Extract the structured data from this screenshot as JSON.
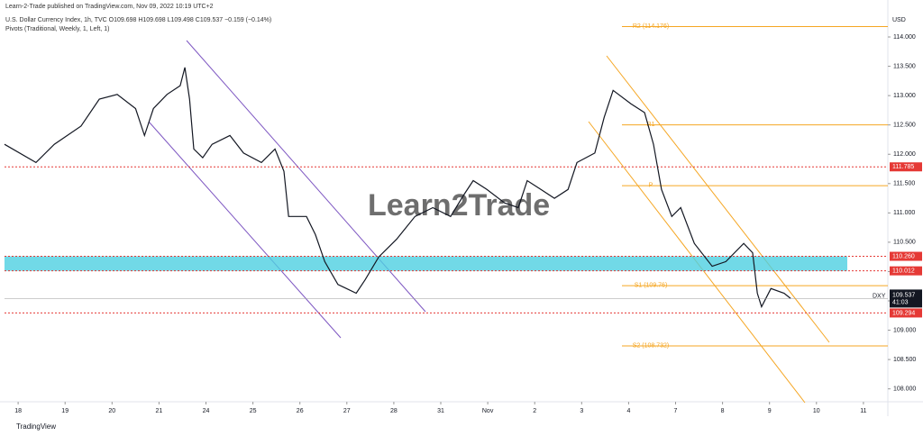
{
  "chart_data": {
    "type": "line",
    "header": "Learn-2-Trade published on TradingView.com, Nov 09, 2022 10:19 UTC+2",
    "title": "U.S. Dollar Currency Index, 1h, TVC  O109.698  H109.698  L109.498  C109.537  −0.159 (−0.14%)",
    "subtitle": "Pivots (Traditional, Weekly, 1, Left, 1)",
    "watermark": "Learn2Trade",
    "footer": "TradingView",
    "currency": "USD",
    "countdown": "41:03",
    "x": [
      -0.29,
      0.38,
      0.77,
      1.34,
      1.73,
      2.11,
      2.5,
      2.69,
      2.88,
      3.17,
      3.45,
      3.55,
      3.65,
      3.74,
      3.93,
      4.13,
      4.51,
      4.8,
      5.18,
      5.47,
      5.66,
      5.76,
      6.14,
      6.33,
      6.53,
      6.81,
      7.2,
      7.39,
      7.68,
      8.06,
      8.45,
      8.83,
      9.21,
      9.5,
      9.69,
      9.98,
      10.36,
      10.65,
      10.84,
      11.13,
      11.42,
      11.71,
      11.9,
      12.09,
      12.28,
      12.48,
      12.67,
      13.05,
      13.34,
      13.53,
      13.7,
      13.92,
      14.11,
      14.4,
      14.78,
      15.07,
      15.45,
      15.64,
      15.74,
      15.83,
      16.03,
      16.31,
      16.45
    ],
    "series": [
      {
        "name": "DXY",
        "color": "#131722",
        "values": [
          112.17,
          111.86,
          112.17,
          112.48,
          112.94,
          113.02,
          112.78,
          112.32,
          112.78,
          113.02,
          113.17,
          113.48,
          112.94,
          112.09,
          111.94,
          112.17,
          112.32,
          112.02,
          111.86,
          112.09,
          111.71,
          110.94,
          110.94,
          110.63,
          110.17,
          109.78,
          109.63,
          109.86,
          110.25,
          110.55,
          110.94,
          111.09,
          110.94,
          111.32,
          111.55,
          111.4,
          111.17,
          111.09,
          111.55,
          111.4,
          111.25,
          111.4,
          111.86,
          111.94,
          112.02,
          112.63,
          113.09,
          112.86,
          112.71,
          112.17,
          111.4,
          110.94,
          111.09,
          110.48,
          110.09,
          110.17,
          110.48,
          110.32,
          109.63,
          109.4,
          109.71,
          109.63,
          109.54
        ],
        "value_labels": [
          null,
          null,
          null,
          null,
          null,
          null,
          null,
          null,
          null,
          null,
          null,
          null,
          null,
          null,
          null,
          null,
          null,
          null,
          null,
          null,
          null,
          null,
          null,
          null,
          null,
          null,
          null,
          null,
          null,
          null,
          null,
          null,
          null,
          null,
          null,
          null,
          null,
          null,
          null,
          null,
          null,
          null,
          null,
          null,
          null,
          null,
          null,
          null,
          null,
          null,
          null,
          null,
          null,
          null,
          null,
          null,
          null,
          null,
          null,
          null,
          null,
          null,
          "109.537"
        ]
      }
    ],
    "xlim": [
      -0.29,
      18.52
    ],
    "ylim": [
      107.78,
      114.63
    ],
    "xticks": [
      {
        "value": 0,
        "label": "18"
      },
      {
        "value": 1,
        "label": "19"
      },
      {
        "value": 2,
        "label": "20"
      },
      {
        "value": 3,
        "label": "21"
      },
      {
        "value": 4,
        "label": "24"
      },
      {
        "value": 5,
        "label": "25"
      },
      {
        "value": 6,
        "label": "26"
      },
      {
        "value": 7,
        "label": "27"
      },
      {
        "value": 8,
        "label": "28"
      },
      {
        "value": 9,
        "label": "31"
      },
      {
        "value": 10,
        "label": "Nov"
      },
      {
        "value": 11,
        "label": "2"
      },
      {
        "value": 12,
        "label": "3"
      },
      {
        "value": 13,
        "label": "4"
      },
      {
        "value": 14,
        "label": "7"
      },
      {
        "value": 15,
        "label": "8"
      },
      {
        "value": 16,
        "label": "9"
      },
      {
        "value": 17,
        "label": "10"
      },
      {
        "value": 18,
        "label": "11"
      }
    ],
    "yticks": [
      {
        "value": 108,
        "label": "108.000"
      },
      {
        "value": 108.5,
        "label": "108.500"
      },
      {
        "value": 109,
        "label": "109.000"
      },
      {
        "value": 109.5,
        "label": "109.500"
      },
      {
        "value": 110,
        "label": "110.000"
      },
      {
        "value": 110.5,
        "label": "110.500"
      },
      {
        "value": 111,
        "label": "111.000"
      },
      {
        "value": 111.5,
        "label": "111.500"
      },
      {
        "value": 112,
        "label": "112.000"
      },
      {
        "value": 112.5,
        "label": "112.500"
      },
      {
        "value": 113,
        "label": "113.000"
      },
      {
        "value": 113.5,
        "label": "113.500"
      },
      {
        "value": 114,
        "label": "114.000"
      }
    ],
    "levels": [
      {
        "value": 111.785,
        "label": "111.785",
        "color": "#e53935"
      },
      {
        "value": 110.26,
        "label": "110.260",
        "color": "#e53935"
      },
      {
        "value": 110.012,
        "label": "110.012",
        "color": "#e53935"
      },
      {
        "value": 109.294,
        "label": "109.294",
        "color": "#e53935"
      }
    ],
    "zone": {
      "from": 110.012,
      "to": 110.26,
      "color": "#4dd0e1"
    },
    "pivots": [
      {
        "value": 114.176,
        "label": "R2 (114.176)"
      },
      {
        "value": 112.5,
        "label": "R1"
      },
      {
        "value": 111.465,
        "label": "P"
      },
      {
        "value": 109.76,
        "label": "S1 (109.76)"
      },
      {
        "value": 108.732,
        "label": "S2 (108.732)"
      }
    ],
    "pivot_color": "#f5a623"
  }
}
